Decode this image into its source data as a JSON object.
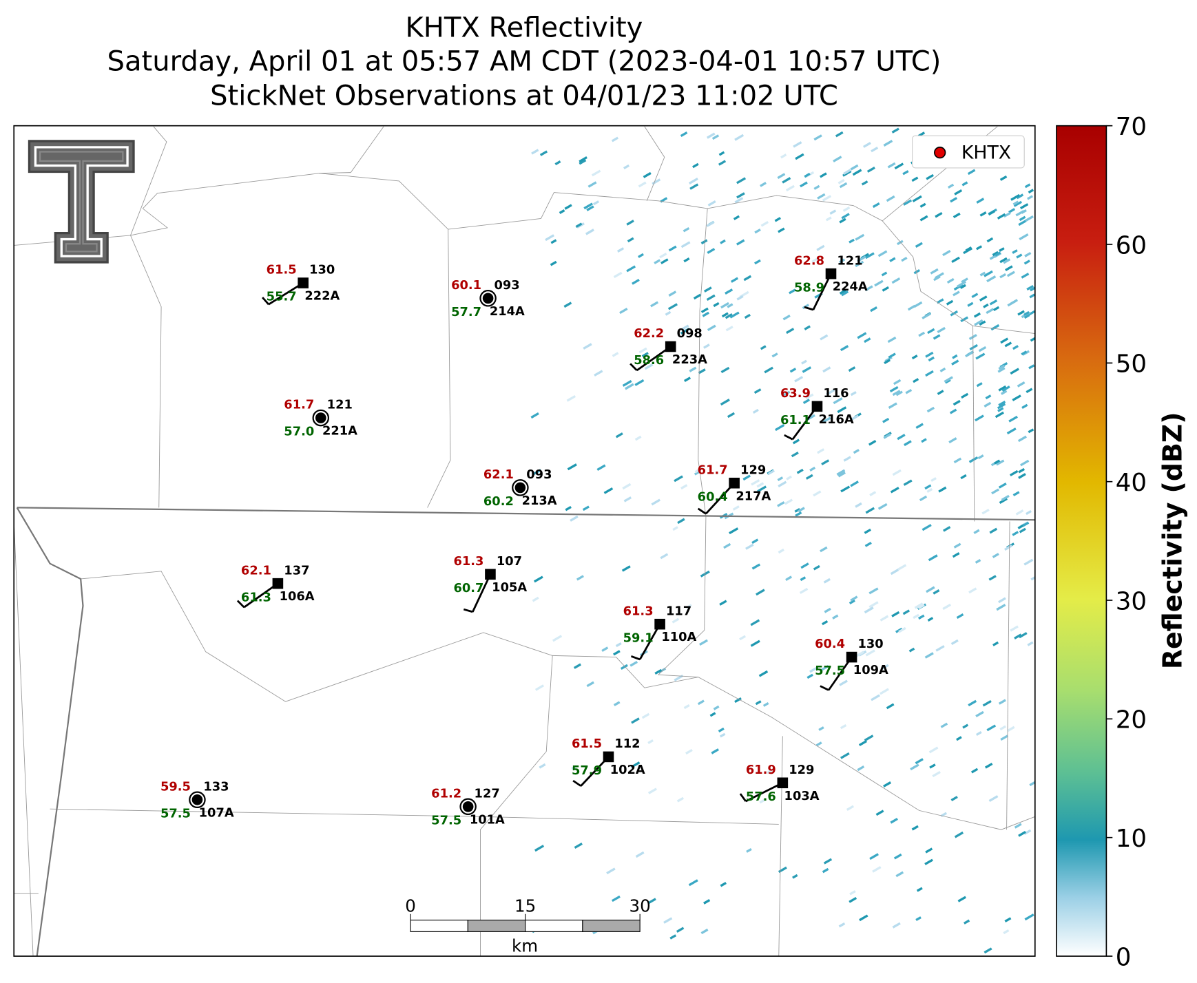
{
  "title": [
    "KHTX Reflectivity",
    "Saturday, April 01 at 05:57 AM CDT (2023-04-01 10:57 UTC)",
    "StickNet Observations at 04/01/23 11:02 UTC"
  ],
  "legend": "KHTX",
  "colorbar": {
    "label": "Reflectivity (dBZ)",
    "lim": [
      0,
      70
    ],
    "ticks": [
      0,
      10,
      20,
      30,
      40,
      50,
      60,
      70
    ]
  },
  "scale_bar": {
    "ticks": [
      0,
      15,
      30
    ],
    "unit": "km"
  },
  "stations": [
    {
      "id": "222A",
      "temperature": "61.5",
      "dewpoint": "55.7",
      "pressure": "130"
    },
    {
      "id": "214A",
      "temperature": "60.1",
      "dewpoint": "57.7",
      "pressure": "093"
    },
    {
      "id": "223A",
      "temperature": "62.2",
      "dewpoint": "58.6",
      "pressure": "098"
    },
    {
      "id": "224A",
      "temperature": "62.8",
      "dewpoint": "58.9",
      "pressure": "121"
    },
    {
      "id": "221A",
      "temperature": "61.7",
      "dewpoint": "57.0",
      "pressure": "121"
    },
    {
      "id": "216A",
      "temperature": "63.9",
      "dewpoint": "61.1",
      "pressure": "116"
    },
    {
      "id": "213A",
      "temperature": "62.1",
      "dewpoint": "60.2",
      "pressure": "093"
    },
    {
      "id": "217A",
      "temperature": "61.7",
      "dewpoint": "60.4",
      "pressure": "129"
    },
    {
      "id": "106A",
      "temperature": "62.1",
      "dewpoint": "61.3",
      "pressure": "137"
    },
    {
      "id": "105A",
      "temperature": "61.3",
      "dewpoint": "60.7",
      "pressure": "107"
    },
    {
      "id": "110A",
      "temperature": "61.3",
      "dewpoint": "59.1",
      "pressure": "117"
    },
    {
      "id": "109A",
      "temperature": "60.4",
      "dewpoint": "57.5",
      "pressure": "130"
    },
    {
      "id": "102A",
      "temperature": "61.5",
      "dewpoint": "57.9",
      "pressure": "112"
    },
    {
      "id": "103A",
      "temperature": "61.9",
      "dewpoint": "57.6",
      "pressure": "129"
    },
    {
      "id": "107A",
      "temperature": "59.5",
      "dewpoint": "57.5",
      "pressure": "133"
    },
    {
      "id": "101A",
      "temperature": "61.2",
      "dewpoint": "57.5",
      "pressure": "127"
    }
  ]
}
